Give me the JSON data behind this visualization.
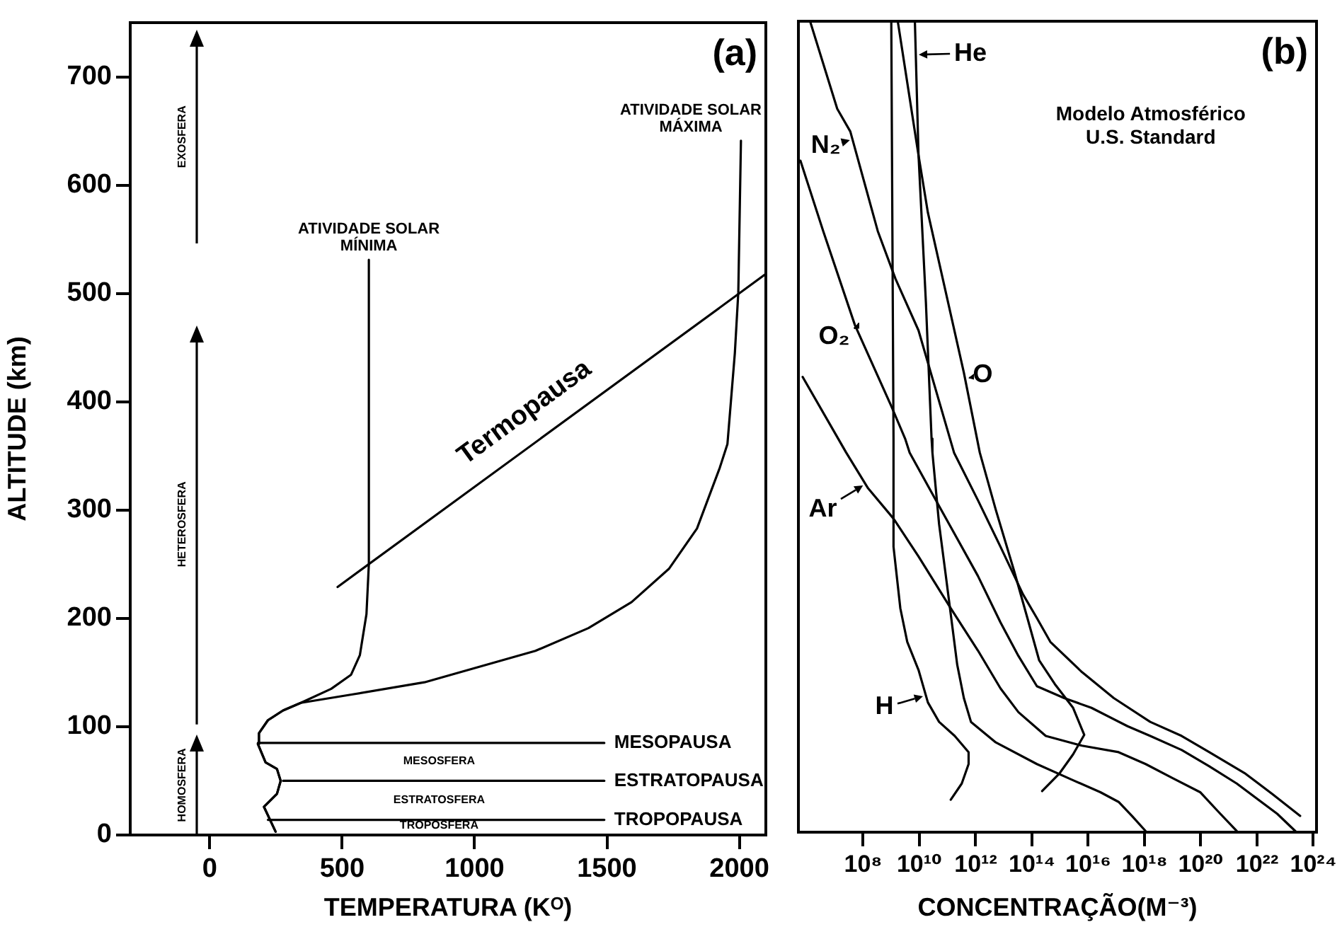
{
  "chart_data": [
    {
      "type": "line",
      "xlabel": "TEMPERATURA (Kᴼ)",
      "ylabel": "ALTITUDE (km)",
      "xlim": [
        -300,
        2100
      ],
      "ylim": [
        0,
        750
      ],
      "xticks": [
        0,
        500,
        1000,
        1500,
        2000
      ],
      "yticks": [
        0,
        100,
        200,
        300,
        400,
        500,
        600,
        700
      ],
      "marker": "none",
      "line_style": "solid",
      "series": [
        {
          "name": "ATIVIDADE SOLAR MÍNIMA",
          "color": "#000000",
          "x": [
            249,
            205,
            254,
            268,
            254,
            211,
            182,
            186,
            220,
            277,
            344,
            459,
            534,
            567,
            592,
            601,
            601
          ],
          "values": [
            3,
            26,
            38,
            50,
            61,
            67,
            84,
            94,
            106,
            115,
            122,
            135,
            148,
            166,
            204,
            250,
            531
          ]
        },
        {
          "name": "ATIVIDADE SOLAR MÁXIMA",
          "color": "#000000",
          "x": [
            249,
            205,
            254,
            268,
            254,
            211,
            182,
            186,
            220,
            277,
            344,
            544,
            811,
            1230,
            1430,
            1593,
            1735,
            1840,
            1926,
            1955,
            1983,
            1996,
            2002,
            2006
          ],
          "values": [
            3,
            26,
            38,
            50,
            61,
            67,
            84,
            94,
            106,
            115,
            122,
            130,
            141,
            170,
            191,
            215,
            246,
            283,
            339,
            361,
            445,
            501,
            585,
            641
          ]
        },
        {
          "name": "Termopausa",
          "color": "#000000",
          "x": [
            483,
            2100
          ],
          "values": [
            229,
            518
          ]
        },
        {
          "name": "MESOPAUSA",
          "color": "#000000",
          "x": [
            182,
            1490
          ],
          "values": [
            85,
            85
          ]
        },
        {
          "name": "ESTRATOPAUSA",
          "color": "#000000",
          "x": [
            277,
            1490
          ],
          "values": [
            50,
            50
          ]
        },
        {
          "name": "TROPOPAUSA",
          "color": "#000000",
          "x": [
            220,
            1490
          ],
          "values": [
            14,
            14
          ]
        }
      ],
      "annotations": [
        "(a)",
        "MESOSFERA",
        "ESTRATOSFERA",
        "TROPOSFERA",
        "HOMOSFERA",
        "HETEROSFERA",
        "EXOSFERA"
      ]
    },
    {
      "type": "line",
      "xlabel": "CONCENTRAÇÃO(M⁻³)",
      "log": "x",
      "xlim": [
        500000.0,
        1.3e+24
      ],
      "ylim": [
        0,
        750
      ],
      "tick_labels": "x",
      "marker": "none",
      "line_style": "solid",
      "xticks": [
        {
          "value": 100000000.0,
          "label": "10⁸"
        },
        {
          "value": 10000000000.0,
          "label": "10¹⁰"
        },
        {
          "value": 1000000000000.0,
          "label": "10¹²"
        },
        {
          "value": 100000000000000.0,
          "label": "10¹⁴"
        },
        {
          "value": 1e+16,
          "label": "10¹⁶"
        },
        {
          "value": 1e+18,
          "label": "10¹⁸"
        },
        {
          "value": 1e+20,
          "label": "10²⁰"
        },
        {
          "value": 1e+22,
          "label": "10²²"
        },
        {
          "value": 1e+24,
          "label": "10²⁴"
        }
      ],
      "series": [
        {
          "color": "#000000",
          "x": [
            1300000.0,
            12000000.0,
            35000000.0,
            330000000.0,
            1400000000.0,
            9300000000.0,
            170000000000.0,
            1200000000000.0,
            7600000000000.0,
            48000000000000.0,
            150000000000000.0,
            450000000000000.0,
            6000000000000000.0,
            8.1e+16,
            1.6e+18,
            2.1e+19,
            2e+20,
            3.9e+21,
            3.6e+22,
            3.4e+23
          ],
          "values": [
            750,
            669,
            648,
            556,
            512,
            464,
            351,
            307,
            264,
            220,
            198,
            176,
            148,
            124,
            102,
            89,
            74,
            54,
            35,
            15
          ]
        },
        {
          "color": "#000000",
          "x": [
            590000.0,
            3800000.0,
            51000000.0,
            1000000000.0,
            3100000000.0,
            4500000000.0,
            60000000000.0,
            1200000000000.0,
            7600000000000.0,
            33000000000000.0,
            150000000000000.0,
            1400000000000000.0,
            1.3e+16,
            2.5e+17,
            1.6e+18,
            2.1e+19,
            2e+20,
            1.9e+21,
            5.2e+22,
            2.3e+23
          ],
          "values": [
            621,
            556,
            469,
            394,
            364,
            351,
            298,
            237,
            194,
            163,
            135,
            124,
            115,
            98,
            89,
            76,
            61,
            45,
            17,
            1
          ]
        },
        {
          "color": "#000000",
          "x": [
            6900000000.0,
            9300000000.0,
            17000000000.0,
            27000000000.0,
            29000000000.0,
            50000000000.0,
            87000000000.0,
            150000000000.0,
            220000000000.0,
            380000000000.0,
            680000000000.0,
            5200000000000.0,
            150000000000000.0,
            2900000000000000.0,
            2.7e+16,
            1.2e+17,
            3.6e+17,
            1.1e+18
          ],
          "values": [
            750,
            626,
            490,
            364,
            351,
            285,
            237,
            189,
            155,
            124,
            102,
            83,
            63,
            48,
            37,
            28,
            15,
            1
          ]
        },
        {
          "color": "#000000",
          "x": [
            1700000000.0,
            9300000000.0,
            20000000000.0,
            380000000000.0,
            1400000000000.0,
            5200000000000.0,
            23000000000000.0,
            69000000000000.0,
            180000000000000.0,
            650000000000000.0,
            2900000000000000.0,
            7200000000000000.0,
            2900000000000000.0,
            930000000000000.0,
            230000000000000.0
          ],
          "values": [
            750,
            626,
            573,
            425,
            351,
            298,
            242,
            198,
            159,
            137,
            115,
            90,
            72,
            54,
            38
          ]
        },
        {
          "color": "#000000",
          "x": [
            1000000000.0,
            1200000000.0,
            1200000000.0,
            2100000000.0,
            3700000000.0,
            9300000000.0,
            20000000000.0,
            50000000000.0,
            180000000000.0,
            560000000000.0,
            560000000000.0,
            320000000000.0,
            130000000000.0
          ],
          "values": [
            750,
            364,
            264,
            207,
            176,
            150,
            120,
            102,
            89,
            74,
            63,
            45,
            30
          ]
        },
        {
          "color": "#000000",
          "x": [
            710000.0,
            25000000.0,
            150000000.0,
            1200000000.0,
            9300000000.0,
            130000000000.0,
            1200000000000.0,
            7600000000000.0,
            33000000000000.0,
            310000000000000.0,
            6000000000000000.0,
            1.2e+17,
            1.1e+18,
            1e+19,
            9.5e+19,
            4.2e+20,
            1.9e+21
          ],
          "values": [
            421,
            351,
            318,
            290,
            255,
            207,
            168,
            133,
            111,
            89,
            80,
            74,
            63,
            50,
            37,
            19,
            1
          ]
        }
      ],
      "annotations": [
        "(b)",
        "Modelo Atmosférico\nU.S. Standard",
        "He",
        "O",
        "N₂",
        "O₂",
        "Ar",
        "H"
      ]
    }
  ]
}
